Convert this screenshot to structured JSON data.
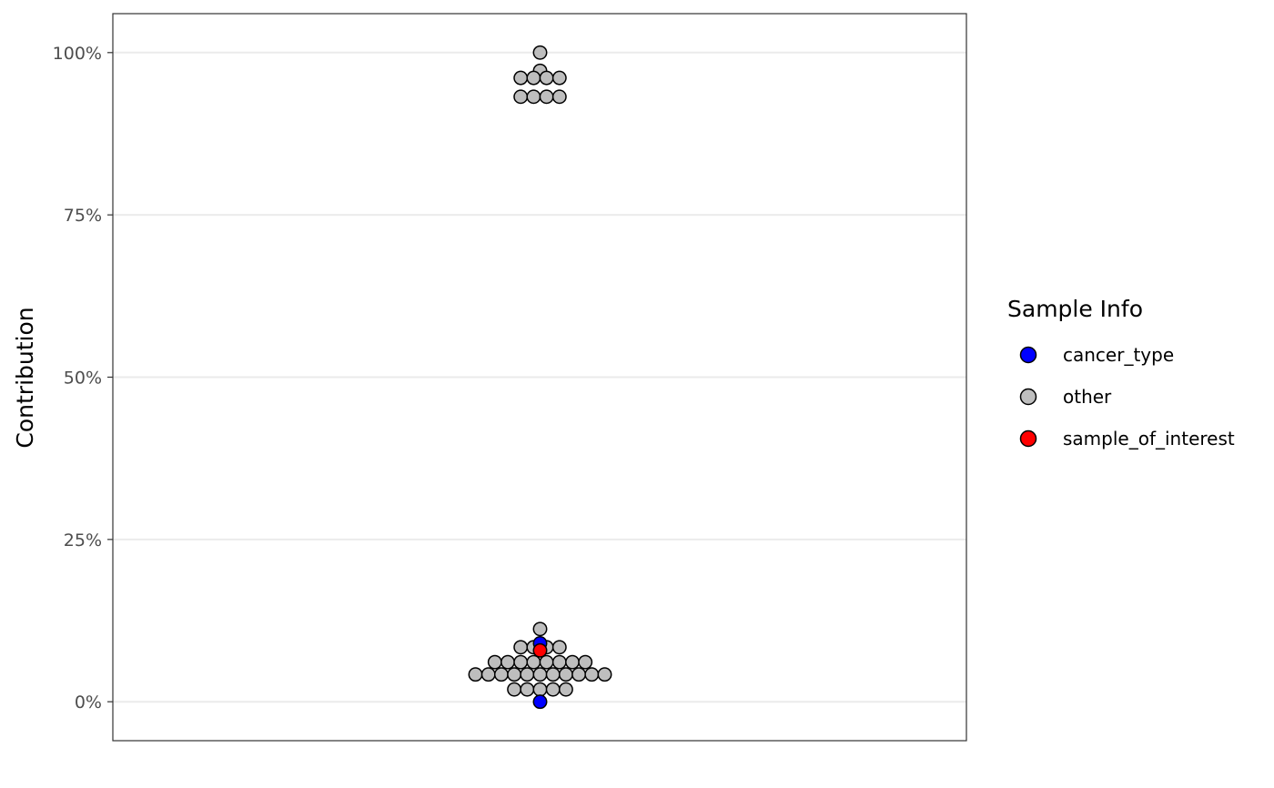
{
  "chart_data": {
    "type": "scatter",
    "subtype": "beeswarm",
    "ylabel": "Contribution",
    "xlabel": "",
    "ylim": [
      -0.06,
      1.06
    ],
    "y_ticks": [
      0,
      0.25,
      0.5,
      0.75,
      1.0
    ],
    "y_tick_labels": [
      "0%",
      "25%",
      "50%",
      "75%",
      "100%"
    ],
    "grid": "horizontal major",
    "legend": {
      "title": "Sample Info",
      "placement": "right",
      "entries": [
        {
          "label": "cancer_type",
          "color": "#0000ff"
        },
        {
          "label": "other",
          "color": "#bebebe"
        },
        {
          "label": "sample_of_interest",
          "color": "#ff0000"
        }
      ]
    },
    "series": [
      {
        "name": "other",
        "color": "#bebebe",
        "points": [
          {
            "y": 1.0,
            "slot": 0
          },
          {
            "y": 0.972,
            "slot": 0
          },
          {
            "y": 0.961,
            "slot": -3
          },
          {
            "y": 0.961,
            "slot": -1
          },
          {
            "y": 0.961,
            "slot": 1
          },
          {
            "y": 0.961,
            "slot": 3
          },
          {
            "y": 0.932,
            "slot": -3
          },
          {
            "y": 0.932,
            "slot": -1
          },
          {
            "y": 0.932,
            "slot": 1
          },
          {
            "y": 0.932,
            "slot": 3
          },
          {
            "y": 0.112,
            "slot": 0
          },
          {
            "y": 0.084,
            "slot": -3
          },
          {
            "y": 0.084,
            "slot": -1
          },
          {
            "y": 0.084,
            "slot": 1
          },
          {
            "y": 0.084,
            "slot": 3
          },
          {
            "y": 0.061,
            "slot": -7
          },
          {
            "y": 0.061,
            "slot": -5
          },
          {
            "y": 0.061,
            "slot": -3
          },
          {
            "y": 0.061,
            "slot": -1
          },
          {
            "y": 0.061,
            "slot": 1
          },
          {
            "y": 0.061,
            "slot": 3
          },
          {
            "y": 0.061,
            "slot": 5
          },
          {
            "y": 0.061,
            "slot": 7
          },
          {
            "y": 0.042,
            "slot": -10
          },
          {
            "y": 0.042,
            "slot": -8
          },
          {
            "y": 0.042,
            "slot": -6
          },
          {
            "y": 0.042,
            "slot": -4
          },
          {
            "y": 0.042,
            "slot": -2
          },
          {
            "y": 0.042,
            "slot": 0
          },
          {
            "y": 0.042,
            "slot": 2
          },
          {
            "y": 0.042,
            "slot": 4
          },
          {
            "y": 0.042,
            "slot": 6
          },
          {
            "y": 0.042,
            "slot": 8
          },
          {
            "y": 0.042,
            "slot": 10
          },
          {
            "y": 0.019,
            "slot": -4
          },
          {
            "y": 0.019,
            "slot": -2
          },
          {
            "y": 0.019,
            "slot": 0
          },
          {
            "y": 0.019,
            "slot": 2
          },
          {
            "y": 0.019,
            "slot": 4
          }
        ]
      },
      {
        "name": "cancer_type",
        "color": "#0000ff",
        "points": [
          {
            "y": 0.09,
            "slot": 0
          },
          {
            "y": 0.0,
            "slot": 0
          }
        ]
      },
      {
        "name": "sample_of_interest",
        "color": "#ff0000",
        "points": [
          {
            "y": 0.079,
            "slot": 0
          }
        ]
      }
    ]
  }
}
